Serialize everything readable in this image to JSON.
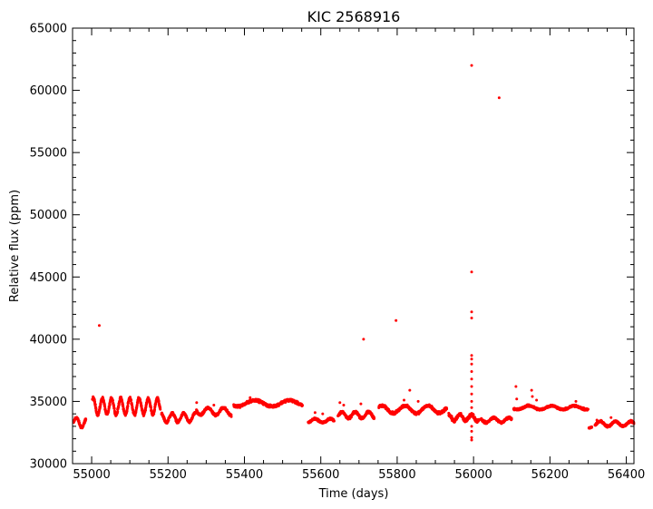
{
  "chart_data": {
    "type": "scatter",
    "title": "KIC 2568916",
    "xlabel": "Time (days)",
    "ylabel": "Relative flux (ppm)",
    "xlim": [
      54950,
      56420
    ],
    "ylim": [
      30000,
      65000
    ],
    "x_ticks": [
      55000,
      55200,
      55400,
      55600,
      55800,
      56000,
      56200,
      56400
    ],
    "y_ticks": [
      30000,
      35000,
      40000,
      45000,
      50000,
      55000,
      60000,
      65000
    ],
    "grid": false,
    "marker_color": "#ff0000",
    "segments": [
      {
        "x_start": 54953,
        "x_end": 54985,
        "base": 33300,
        "amp": 400,
        "period": 28,
        "noise": 150
      },
      {
        "x_start": 55002,
        "x_end": 55180,
        "base": 34600,
        "amp": 650,
        "period": 24,
        "noise": 180
      },
      {
        "x_start": 55183,
        "x_end": 55272,
        "base": 33700,
        "amp": 350,
        "period": 30,
        "noise": 150
      },
      {
        "x_start": 55274,
        "x_end": 55366,
        "base": 34200,
        "amp": 300,
        "period": 40,
        "noise": 150
      },
      {
        "x_start": 55372,
        "x_end": 55552,
        "base": 34850,
        "amp": 250,
        "period": 90,
        "noise": 150
      },
      {
        "x_start": 55567,
        "x_end": 55635,
        "base": 33450,
        "amp": 150,
        "period": 40,
        "noise": 120
      },
      {
        "x_start": 55645,
        "x_end": 55740,
        "base": 33900,
        "amp": 250,
        "period": 35,
        "noise": 150
      },
      {
        "x_start": 55752,
        "x_end": 55930,
        "base": 34350,
        "amp": 300,
        "period": 60,
        "noise": 160
      },
      {
        "x_start": 55935,
        "x_end": 56015,
        "base": 33700,
        "amp": 250,
        "period": 30,
        "noise": 200
      },
      {
        "x_start": 56020,
        "x_end": 56100,
        "base": 33500,
        "amp": 200,
        "period": 40,
        "noise": 130
      },
      {
        "x_start": 56105,
        "x_end": 56300,
        "base": 34500,
        "amp": 150,
        "period": 60,
        "noise": 120
      },
      {
        "x_start": 56302,
        "x_end": 56310,
        "base": 32900,
        "amp": 50,
        "period": 20,
        "noise": 80
      },
      {
        "x_start": 56318,
        "x_end": 56420,
        "base": 33200,
        "amp": 200,
        "period": 40,
        "noise": 130
      }
    ],
    "outliers": [
      {
        "x": 55020,
        "y": 41100
      },
      {
        "x": 55712,
        "y": 40000
      },
      {
        "x": 55797,
        "y": 41500
      },
      {
        "x": 55833,
        "y": 35900
      },
      {
        "x": 55995,
        "y": 62000
      },
      {
        "x": 55995,
        "y": 45400
      },
      {
        "x": 55995,
        "y": 42200
      },
      {
        "x": 55995,
        "y": 41700
      },
      {
        "x": 55995,
        "y": 38700
      },
      {
        "x": 55995,
        "y": 38400
      },
      {
        "x": 55995,
        "y": 38000
      },
      {
        "x": 55995,
        "y": 37400
      },
      {
        "x": 55995,
        "y": 36800
      },
      {
        "x": 55995,
        "y": 36200
      },
      {
        "x": 55995,
        "y": 35600
      },
      {
        "x": 55995,
        "y": 35000
      },
      {
        "x": 55995,
        "y": 34500
      },
      {
        "x": 55995,
        "y": 33000
      },
      {
        "x": 55995,
        "y": 32600
      },
      {
        "x": 55995,
        "y": 32100
      },
      {
        "x": 55995,
        "y": 31900
      },
      {
        "x": 56067,
        "y": 59400
      },
      {
        "x": 56111,
        "y": 36200
      },
      {
        "x": 56113,
        "y": 35200
      },
      {
        "x": 56152,
        "y": 35900
      },
      {
        "x": 56154,
        "y": 35400
      },
      {
        "x": 56165,
        "y": 35100
      },
      {
        "x": 55415,
        "y": 35300
      },
      {
        "x": 55275,
        "y": 34900
      },
      {
        "x": 55320,
        "y": 34700
      },
      {
        "x": 55605,
        "y": 34000
      },
      {
        "x": 55585,
        "y": 34100
      },
      {
        "x": 55650,
        "y": 34900
      },
      {
        "x": 55660,
        "y": 34700
      },
      {
        "x": 55705,
        "y": 34800
      },
      {
        "x": 55818,
        "y": 35100
      },
      {
        "x": 55855,
        "y": 35000
      },
      {
        "x": 56268,
        "y": 35000
      },
      {
        "x": 56323,
        "y": 33500
      },
      {
        "x": 56360,
        "y": 33700
      }
    ]
  }
}
